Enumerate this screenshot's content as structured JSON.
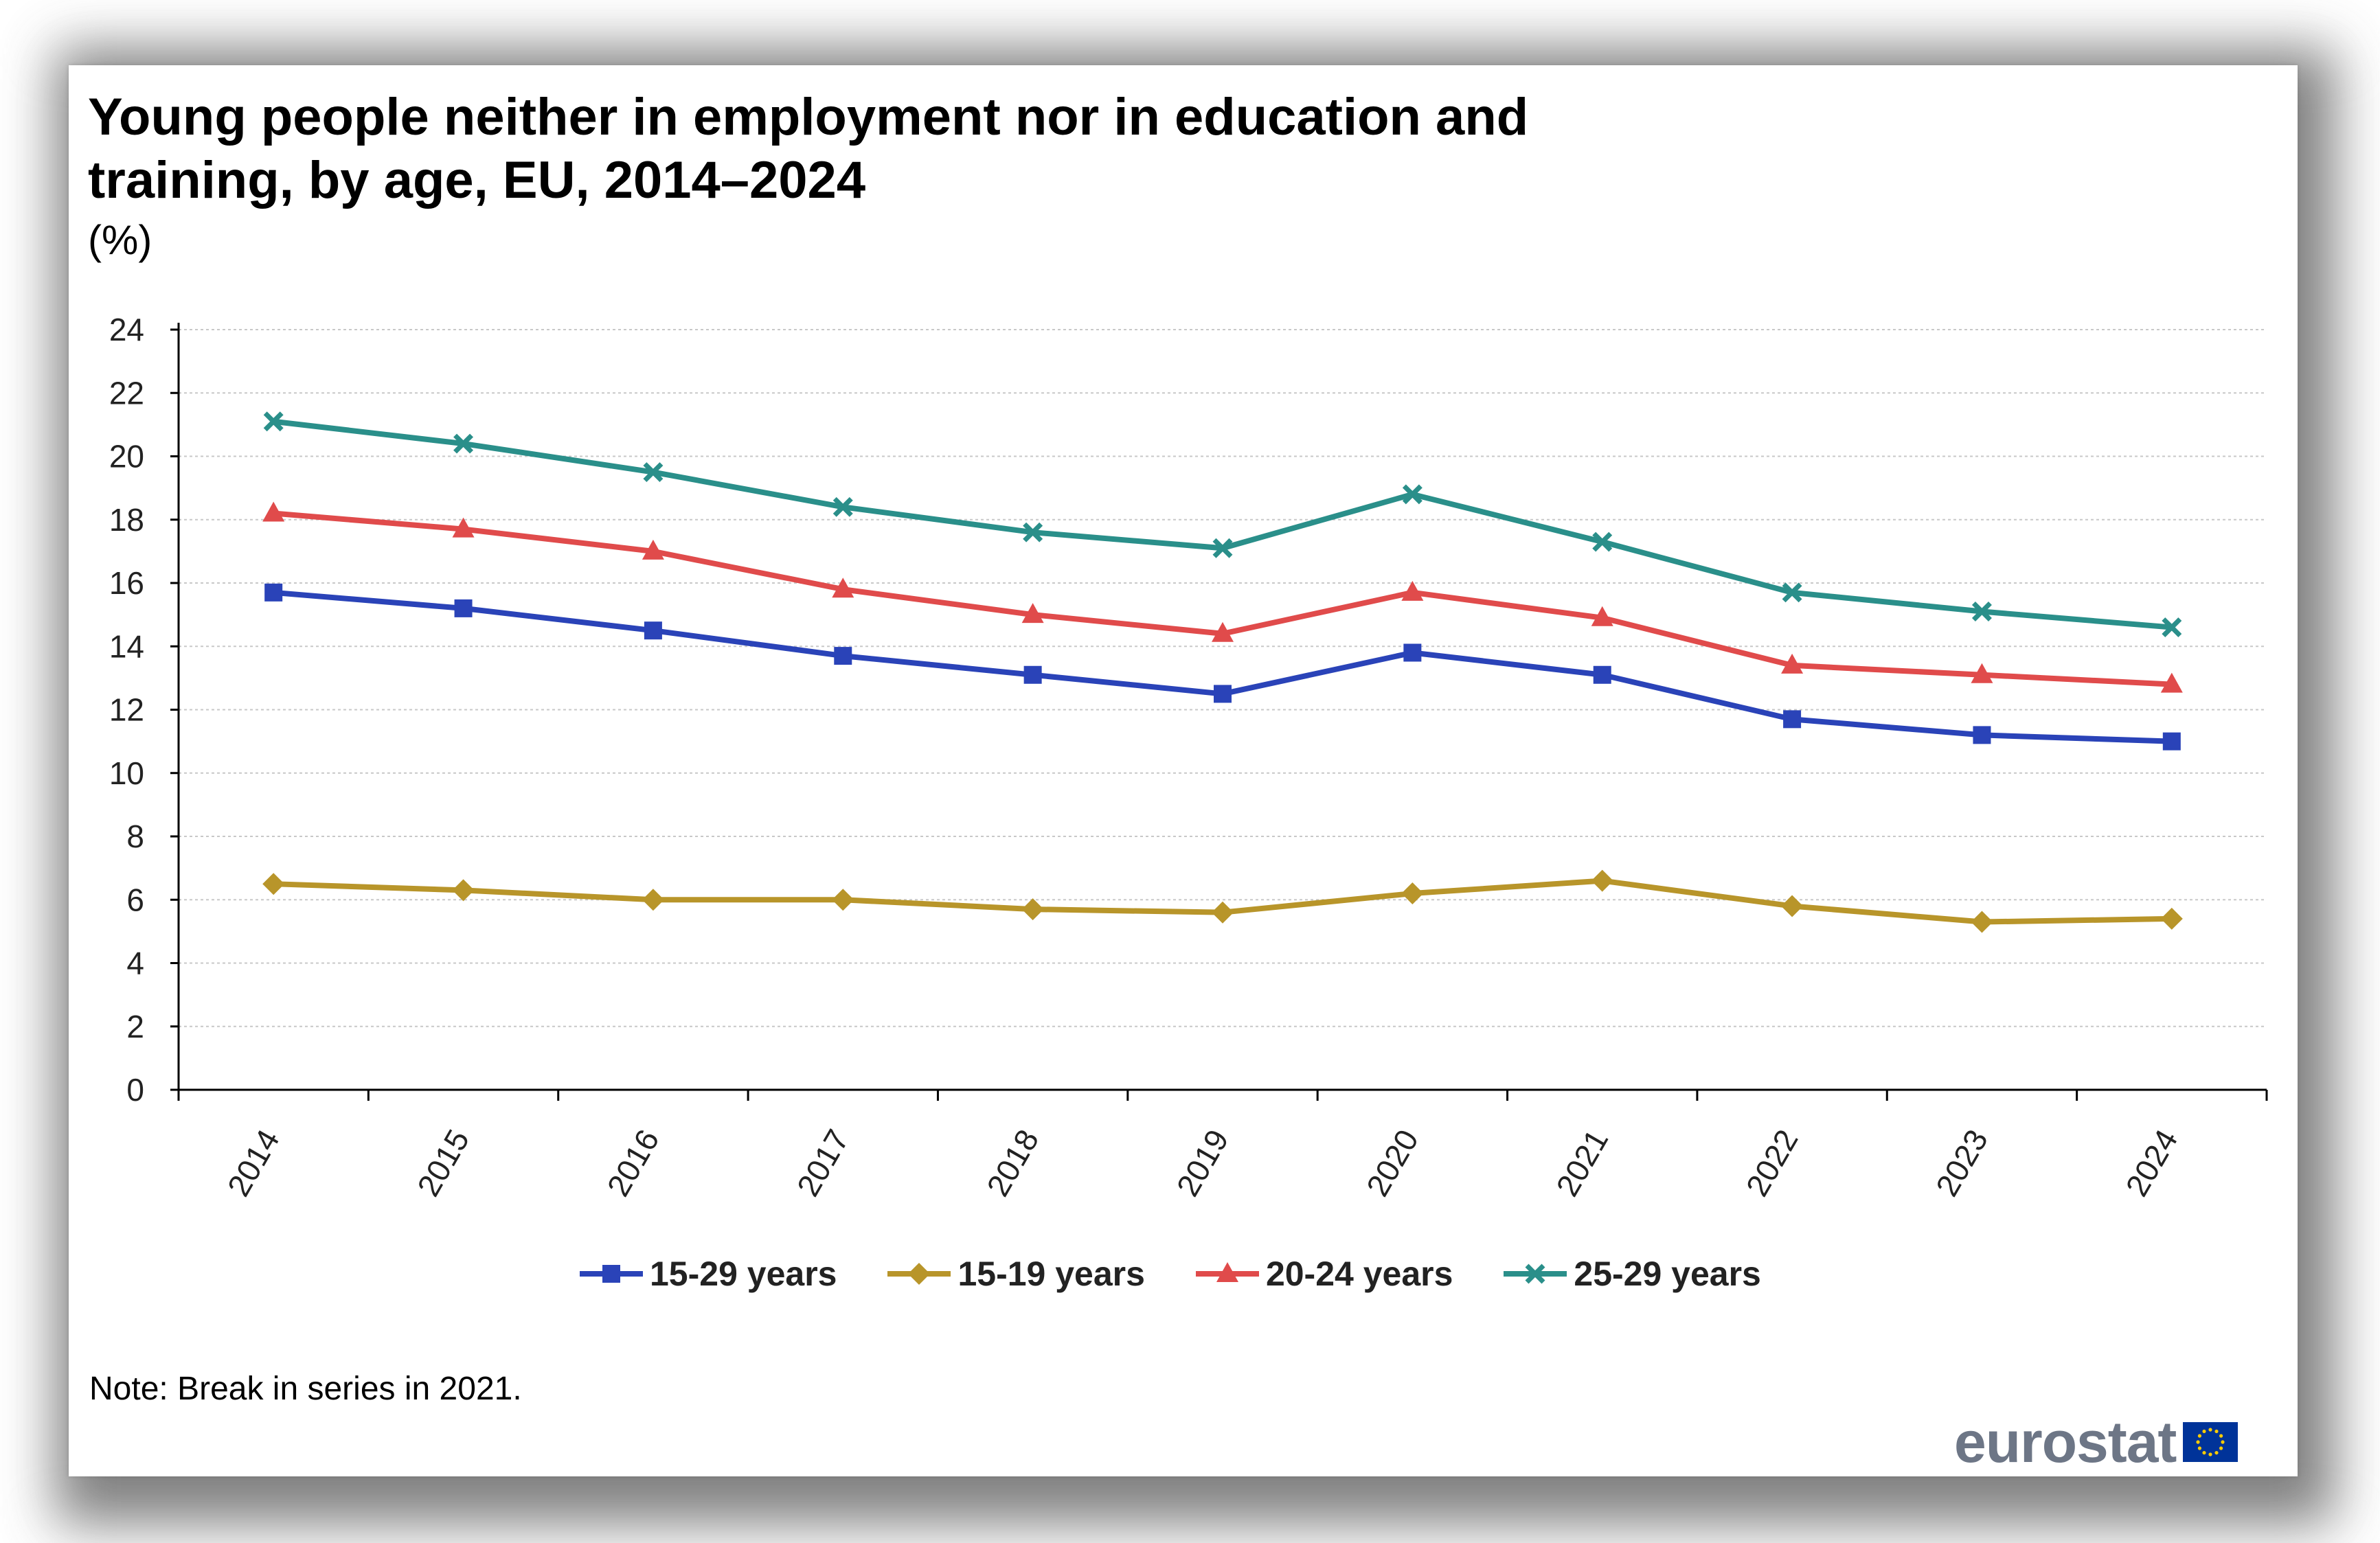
{
  "chart_data": {
    "type": "line",
    "title_lines": [
      "Young people neither in employment nor in education and",
      "training, by age, EU, 2014–2024"
    ],
    "unit_label": "(%)",
    "categories": [
      "2014",
      "2015",
      "2016",
      "2017",
      "2018",
      "2019",
      "2020",
      "2021",
      "2022",
      "2023",
      "2024"
    ],
    "y_ticks": [
      "0",
      "2",
      "4",
      "6",
      "8",
      "10",
      "12",
      "14",
      "16",
      "18",
      "20",
      "22",
      "24"
    ],
    "ylim": [
      0,
      24
    ],
    "grid": true,
    "legend_position": "bottom",
    "series": [
      {
        "name": "15-29 years",
        "color": "#2a43b8",
        "marker": "square",
        "values": [
          15.7,
          15.2,
          14.5,
          13.7,
          13.1,
          12.5,
          13.8,
          13.1,
          11.7,
          11.2,
          11.0
        ]
      },
      {
        "name": "15-19 years",
        "color": "#b8952a",
        "marker": "diamond",
        "values": [
          6.5,
          6.3,
          6.0,
          6.0,
          5.7,
          5.6,
          6.2,
          6.6,
          5.8,
          5.3,
          5.4
        ]
      },
      {
        "name": "20-24 years",
        "color": "#e04b4b",
        "marker": "triangle",
        "values": [
          18.2,
          17.7,
          17.0,
          15.8,
          15.0,
          14.4,
          15.7,
          14.9,
          13.4,
          13.1,
          12.8
        ]
      },
      {
        "name": "25-29 years",
        "color": "#2a8f8a",
        "marker": "cross",
        "values": [
          21.1,
          20.4,
          19.5,
          18.4,
          17.6,
          17.1,
          18.8,
          17.3,
          15.7,
          15.1,
          14.6
        ]
      }
    ],
    "note": "Note: Break in series in 2021."
  },
  "branding": {
    "logo_text": "eurostat",
    "logo_icon": "eu-flag-icon"
  }
}
